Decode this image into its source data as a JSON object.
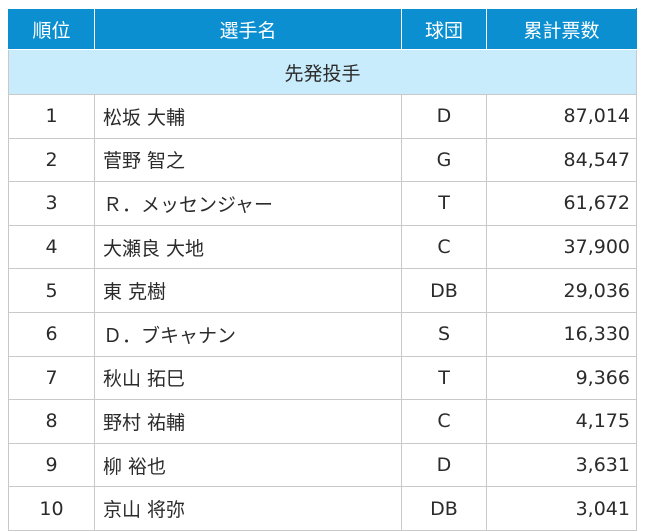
{
  "table": {
    "headers": {
      "rank": "順位",
      "name": "選手名",
      "team": "球団",
      "votes": "累計票数"
    },
    "section": "先発投手",
    "rows": [
      {
        "rank": "1",
        "name": "松坂 大輔",
        "team": "D",
        "votes": "87,014"
      },
      {
        "rank": "2",
        "name": "菅野 智之",
        "team": "G",
        "votes": "84,547"
      },
      {
        "rank": "3",
        "name": "Ｒ．メッセンジャー",
        "team": "T",
        "votes": "61,672"
      },
      {
        "rank": "4",
        "name": "大瀬良 大地",
        "team": "C",
        "votes": "37,900"
      },
      {
        "rank": "5",
        "name": "東 克樹",
        "team": "DB",
        "votes": "29,036"
      },
      {
        "rank": "6",
        "name": "Ｄ．ブキャナン",
        "team": "S",
        "votes": "16,330"
      },
      {
        "rank": "7",
        "name": "秋山 拓巳",
        "team": "T",
        "votes": "9,366"
      },
      {
        "rank": "8",
        "name": "野村 祐輔",
        "team": "C",
        "votes": "4,175"
      },
      {
        "rank": "9",
        "name": "柳 裕也",
        "team": "D",
        "votes": "3,631"
      },
      {
        "rank": "10",
        "name": "京山 将弥",
        "team": "DB",
        "votes": "3,041"
      }
    ]
  },
  "colors": {
    "header_bg": "#0b8fd0",
    "header_text": "#ffffff",
    "section_bg": "#c8ecfb",
    "border": "#c9c9c9"
  }
}
